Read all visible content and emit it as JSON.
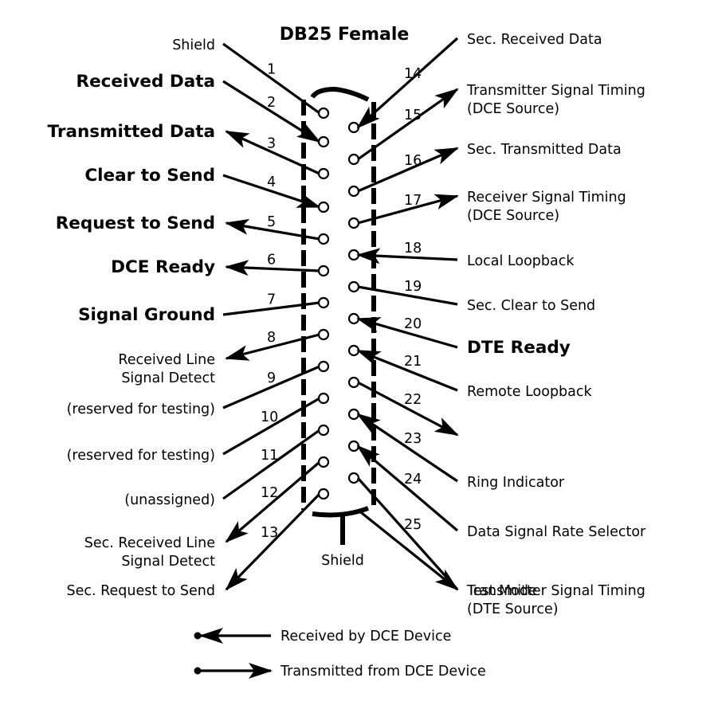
{
  "title": "DB25 Female",
  "shield_label": "Shield",
  "pins": [
    {
      "num": "1",
      "side": "left",
      "label": "Shield",
      "label2": "",
      "weight": "normal",
      "dir": "none"
    },
    {
      "num": "2",
      "side": "left",
      "label": "Received Data",
      "label2": "",
      "weight": "bold",
      "dir": "in"
    },
    {
      "num": "3",
      "side": "left",
      "label": "Transmitted Data",
      "label2": "",
      "weight": "bold",
      "dir": "out"
    },
    {
      "num": "4",
      "side": "left",
      "label": "Clear to Send",
      "label2": "",
      "weight": "bold",
      "dir": "in"
    },
    {
      "num": "5",
      "side": "left",
      "label": "Request to Send",
      "label2": "",
      "weight": "bold",
      "dir": "out"
    },
    {
      "num": "6",
      "side": "left",
      "label": "DCE Ready",
      "label2": "",
      "weight": "bold",
      "dir": "out"
    },
    {
      "num": "7",
      "side": "left",
      "label": "Signal Ground",
      "label2": "",
      "weight": "bold",
      "dir": "none"
    },
    {
      "num": "8",
      "side": "left",
      "label": "Received Line",
      "label2": "Signal Detect",
      "weight": "normal",
      "dir": "out"
    },
    {
      "num": "9",
      "side": "left",
      "label": "(reserved for testing)",
      "label2": "",
      "weight": "normal",
      "dir": "none"
    },
    {
      "num": "10",
      "side": "left",
      "label": "(reserved for testing)",
      "label2": "",
      "weight": "normal",
      "dir": "none"
    },
    {
      "num": "11",
      "side": "left",
      "label": "(unassigned)",
      "label2": "",
      "weight": "normal",
      "dir": "none"
    },
    {
      "num": "12",
      "side": "left",
      "label": "Sec. Received Line",
      "label2": "Signal Detect",
      "weight": "normal",
      "dir": "out"
    },
    {
      "num": "13",
      "side": "left",
      "label": "Sec. Request to Send",
      "label2": "",
      "weight": "normal",
      "dir": "out"
    },
    {
      "num": "14",
      "side": "right",
      "label": "Sec. Received Data",
      "label2": "",
      "weight": "normal",
      "dir": "in"
    },
    {
      "num": "15",
      "side": "right",
      "label": "Transmitter Signal Timing",
      "label2": "(DCE Source)",
      "weight": "normal",
      "dir": "out"
    },
    {
      "num": "16",
      "side": "right",
      "label": "Sec. Transmitted Data",
      "label2": "",
      "weight": "normal",
      "dir": "out"
    },
    {
      "num": "17",
      "side": "right",
      "label": "Receiver Signal Timing",
      "label2": "(DCE Source)",
      "weight": "normal",
      "dir": "out"
    },
    {
      "num": "18",
      "side": "right",
      "label": "Local Loopback",
      "label2": "",
      "weight": "normal",
      "dir": "in"
    },
    {
      "num": "19",
      "side": "right",
      "label": "Sec. Clear to Send",
      "label2": "",
      "weight": "normal",
      "dir": "none"
    },
    {
      "num": "20",
      "side": "right",
      "label": "DTE Ready",
      "label2": "",
      "weight": "bold",
      "dir": "in"
    },
    {
      "num": "21",
      "side": "right",
      "label": "Remote Loopback",
      "label2": "",
      "weight": "normal",
      "dir": "in"
    },
    {
      "num": "22",
      "side": "right",
      "label": "",
      "label2": "",
      "weight": "normal",
      "dir": "out"
    },
    {
      "num": "23",
      "side": "right",
      "label": "Ring Indicator",
      "label2": "",
      "weight": "normal",
      "dir": "in"
    },
    {
      "num": "24",
      "side": "right",
      "label": "Data Signal Rate Selector",
      "label2": "",
      "weight": "normal",
      "dir": "in"
    },
    {
      "num": "25",
      "side": "right",
      "label": "Transmitter Signal Timing",
      "label2": "(DTE Source)",
      "weight": "normal",
      "dir": "none"
    },
    {
      "num": "",
      "side": "right",
      "label": "Test Mode",
      "label2": "",
      "weight": "normal",
      "dir": "out"
    }
  ],
  "legend": [
    {
      "label": "Received by DCE Device",
      "type": "received"
    },
    {
      "label": "Transmitted from DCE Device",
      "type": "transmitted"
    }
  ]
}
